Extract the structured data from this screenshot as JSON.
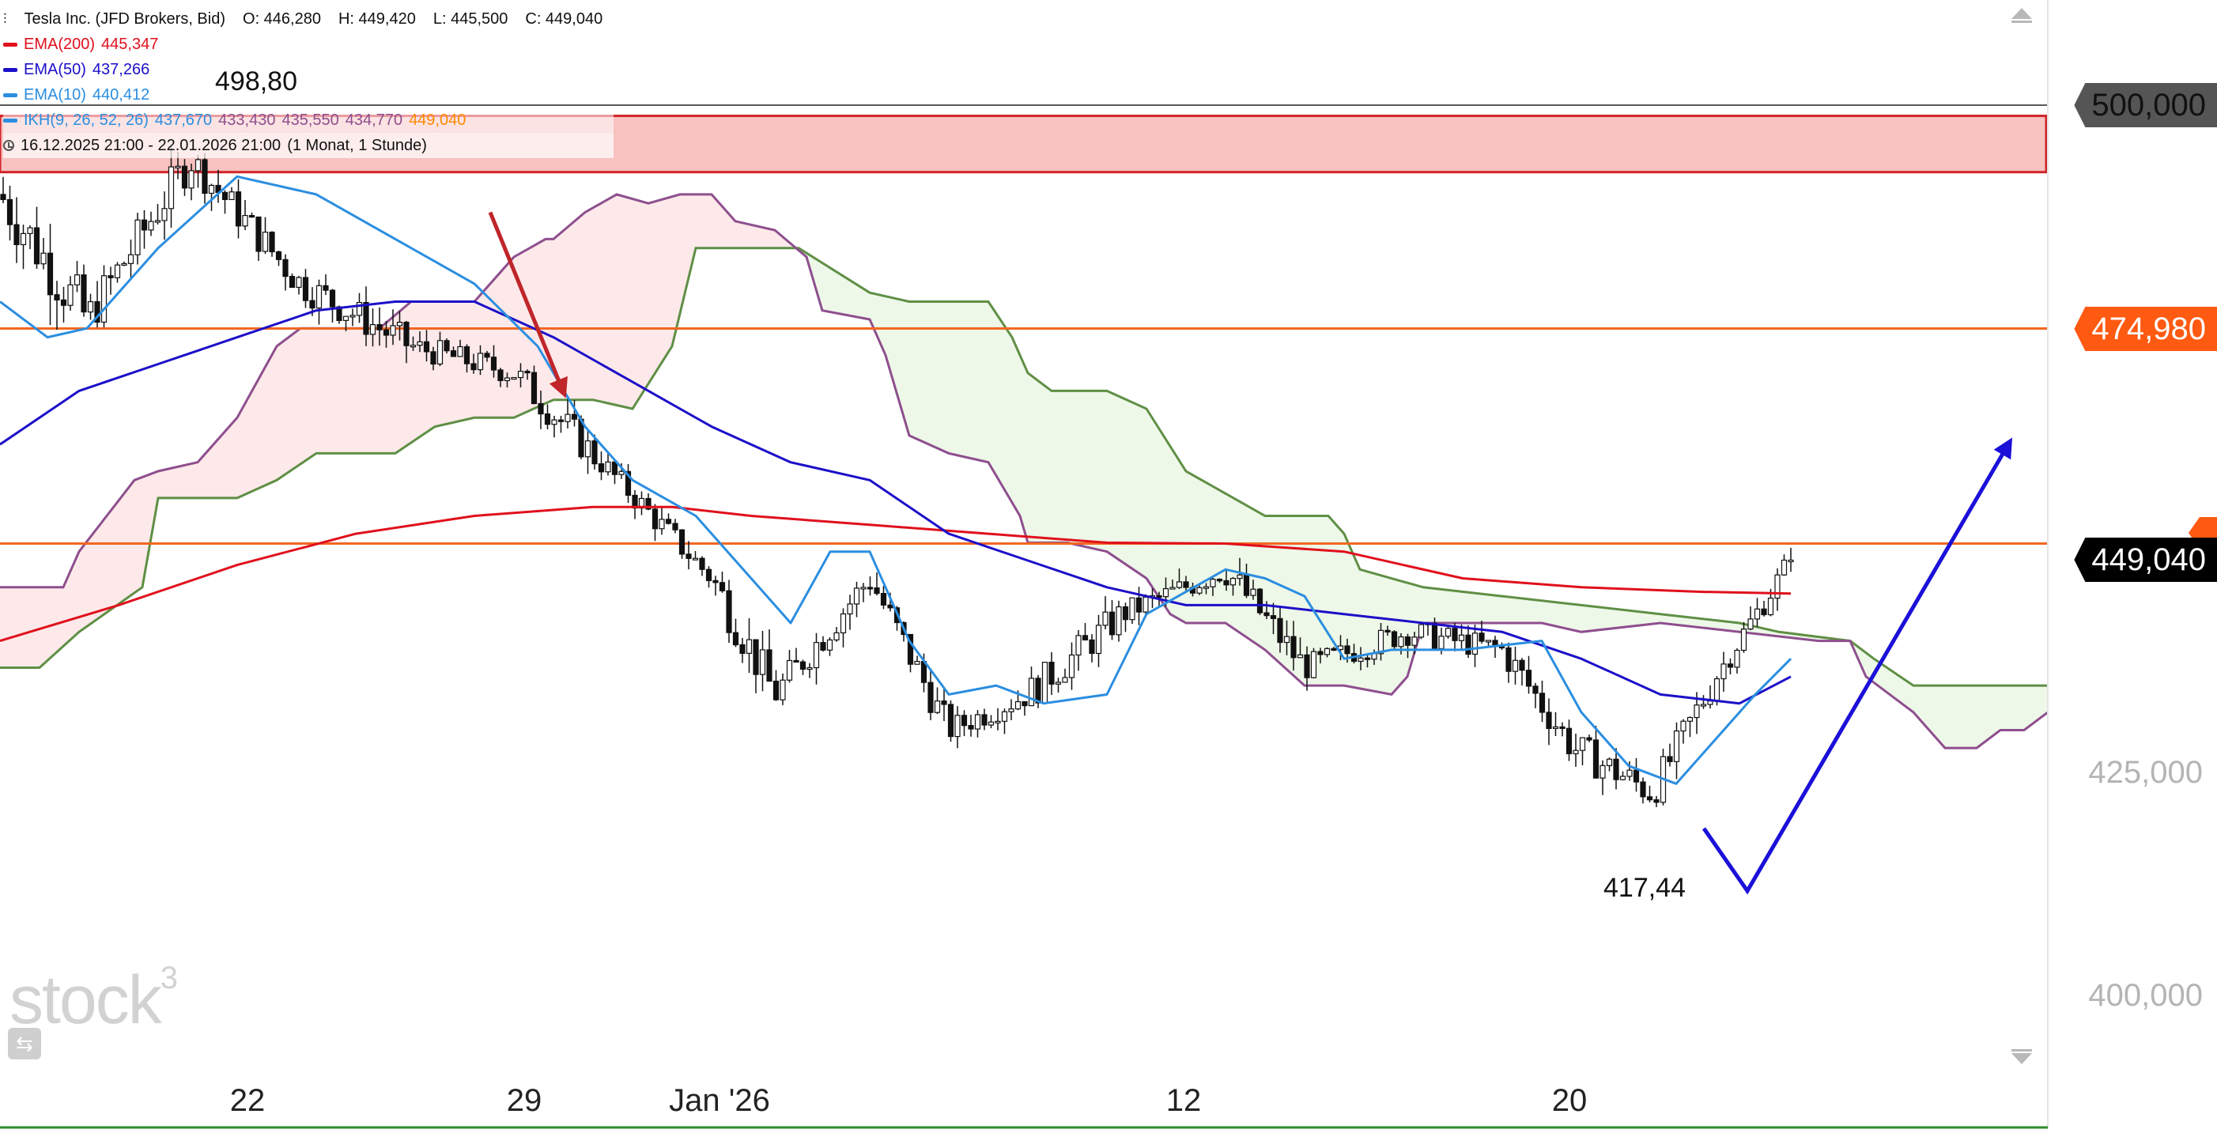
{
  "header": {
    "instrument": "Tesla Inc. (JFD Brokers, Bid)",
    "open": "O: 446,280",
    "high": "H: 449,420",
    "low": "L: 445,500",
    "close": "C: 449,040"
  },
  "legend": {
    "ema200": {
      "label": "EMA(200)",
      "value": "445,347",
      "color": "#e0101c"
    },
    "ema50": {
      "label": "EMA(50)",
      "value": "437,266",
      "color": "#1c0fc8"
    },
    "ema10": {
      "label": "EMA(10)",
      "value": "440,412",
      "color": "#2b8ee0"
    },
    "ikh": {
      "label": "IKH(9, 26, 52, 26)",
      "v1": "437,670",
      "v2": "433,430",
      "v3": "435,550",
      "v4": "434,770",
      "v5": "449,040",
      "colors": [
        "#2b8ee0",
        "#8e4f8e",
        "#8e4f8e",
        "#8e4f8e",
        "#ff8a00"
      ]
    },
    "period": "16.12.2025 21:00 - 22.01.2026 21:00",
    "period_detail": "(1 Monat, 1 Stunde)"
  },
  "annotations": {
    "high_label": "498,80",
    "low_label": "417,44"
  },
  "price_tags": {
    "resistance_high": "500,000",
    "resistance_mid": "474,980",
    "current": "449,040"
  },
  "watermark": "stock",
  "watermark_sup": "3",
  "chart_data": {
    "type": "candlestick",
    "title": "Tesla Inc. (JFD Brokers, Bid)",
    "timeframe": "1 Stunde",
    "x_labels": [
      "22",
      "29",
      "Jan '26",
      "12",
      "20"
    ],
    "y_ticks": [
      400,
      425
    ],
    "y_tick_labels": [
      "400,000",
      "425,000"
    ],
    "ylim": [
      390,
      510
    ],
    "grid": false,
    "horizontal_lines": [
      {
        "value": 500.0,
        "color": "#222222"
      },
      {
        "value": 474.98,
        "color": "#f26722"
      },
      {
        "value": 450.9,
        "color": "#f26722"
      }
    ],
    "resistance_zone": {
      "from": 492.5,
      "to": 498.8,
      "color": "#f7bfbd"
    },
    "candles_summary": {
      "high": 498.8,
      "low": 417.44,
      "last_close": 449.04
    },
    "candle_segments": [
      {
        "x0": 0,
        "x1": 110,
        "start": 490,
        "end": 476,
        "vol": 7
      },
      {
        "x0": 110,
        "x1": 240,
        "start": 476,
        "end": 494,
        "vol": 5
      },
      {
        "x0": 240,
        "x1": 380,
        "start": 494,
        "end": 480,
        "vol": 4
      },
      {
        "x0": 380,
        "x1": 520,
        "start": 480,
        "end": 473,
        "vol": 4
      },
      {
        "x0": 520,
        "x1": 650,
        "start": 473,
        "end": 470,
        "vol": 3
      },
      {
        "x0": 650,
        "x1": 760,
        "start": 470,
        "end": 460,
        "vol": 4
      },
      {
        "x0": 760,
        "x1": 900,
        "start": 460,
        "end": 447,
        "vol": 3
      },
      {
        "x0": 900,
        "x1": 980,
        "start": 447,
        "end": 434,
        "vol": 5
      },
      {
        "x0": 980,
        "x1": 1100,
        "start": 434,
        "end": 447,
        "vol": 4
      },
      {
        "x0": 1100,
        "x1": 1200,
        "start": 447,
        "end": 430,
        "vol": 4
      },
      {
        "x0": 1200,
        "x1": 1300,
        "start": 430,
        "end": 434,
        "vol": 3
      },
      {
        "x0": 1300,
        "x1": 1420,
        "start": 434,
        "end": 443,
        "vol": 4
      },
      {
        "x0": 1420,
        "x1": 1550,
        "start": 443,
        "end": 448,
        "vol": 3
      },
      {
        "x0": 1550,
        "x1": 1650,
        "start": 448,
        "end": 437,
        "vol": 4
      },
      {
        "x0": 1650,
        "x1": 1780,
        "start": 437,
        "end": 441,
        "vol": 3
      },
      {
        "x0": 1780,
        "x1": 1900,
        "start": 441,
        "end": 439,
        "vol": 3
      },
      {
        "x0": 1900,
        "x1": 1990,
        "start": 439,
        "end": 428,
        "vol": 4
      },
      {
        "x0": 1990,
        "x1": 2090,
        "start": 428,
        "end": 423,
        "vol": 4
      },
      {
        "x0": 2090,
        "x1": 2170,
        "start": 423,
        "end": 436,
        "vol": 4
      },
      {
        "x0": 2170,
        "x1": 2265,
        "start": 436,
        "end": 449,
        "vol": 3
      }
    ],
    "series": [
      {
        "name": "EMA(200)",
        "color": "#e0101c",
        "points": [
          [
            0,
            440
          ],
          [
            150,
            444
          ],
          [
            300,
            448.5
          ],
          [
            450,
            452
          ],
          [
            600,
            454
          ],
          [
            750,
            455
          ],
          [
            850,
            455
          ],
          [
            950,
            454
          ],
          [
            1100,
            453
          ],
          [
            1250,
            452
          ],
          [
            1400,
            451
          ],
          [
            1550,
            450.9
          ],
          [
            1700,
            450
          ],
          [
            1850,
            447
          ],
          [
            2000,
            446
          ],
          [
            2150,
            445.5
          ],
          [
            2265,
            445.3
          ]
        ]
      },
      {
        "name": "EMA(50)",
        "color": "#1c0fc8",
        "points": [
          [
            0,
            462
          ],
          [
            100,
            468
          ],
          [
            200,
            471
          ],
          [
            300,
            474
          ],
          [
            400,
            477
          ],
          [
            500,
            478
          ],
          [
            600,
            478
          ],
          [
            700,
            474
          ],
          [
            800,
            469
          ],
          [
            900,
            464
          ],
          [
            1000,
            460
          ],
          [
            1100,
            458
          ],
          [
            1200,
            452
          ],
          [
            1300,
            449
          ],
          [
            1400,
            446
          ],
          [
            1500,
            444
          ],
          [
            1600,
            444
          ],
          [
            1700,
            443
          ],
          [
            1800,
            442
          ],
          [
            1900,
            441
          ],
          [
            2000,
            438
          ],
          [
            2100,
            434
          ],
          [
            2200,
            433
          ],
          [
            2265,
            436
          ]
        ]
      },
      {
        "name": "EMA(10)",
        "color": "#2b8ee0",
        "points": [
          [
            0,
            478
          ],
          [
            60,
            474
          ],
          [
            110,
            475
          ],
          [
            200,
            484
          ],
          [
            300,
            492
          ],
          [
            400,
            490
          ],
          [
            500,
            485
          ],
          [
            600,
            480
          ],
          [
            680,
            473
          ],
          [
            740,
            464
          ],
          [
            800,
            458
          ],
          [
            880,
            454
          ],
          [
            950,
            447
          ],
          [
            1000,
            442
          ],
          [
            1050,
            450
          ],
          [
            1100,
            450
          ],
          [
            1150,
            440
          ],
          [
            1200,
            434
          ],
          [
            1260,
            435
          ],
          [
            1320,
            433
          ],
          [
            1400,
            434
          ],
          [
            1450,
            443
          ],
          [
            1550,
            448
          ],
          [
            1600,
            447
          ],
          [
            1650,
            445
          ],
          [
            1700,
            438
          ],
          [
            1760,
            439
          ],
          [
            1850,
            439
          ],
          [
            1950,
            440
          ],
          [
            2000,
            432
          ],
          [
            2060,
            426
          ],
          [
            2120,
            424
          ],
          [
            2160,
            428
          ],
          [
            2220,
            434
          ],
          [
            2265,
            438
          ]
        ]
      }
    ],
    "ichimoku": {
      "span_a": {
        "color": "#5f8f45",
        "points": [
          [
            0,
            437
          ],
          [
            50,
            437
          ],
          [
            100,
            441
          ],
          [
            180,
            446
          ],
          [
            200,
            456
          ],
          [
            300,
            456
          ],
          [
            350,
            458
          ],
          [
            400,
            461
          ],
          [
            500,
            461
          ],
          [
            550,
            464
          ],
          [
            600,
            465
          ],
          [
            650,
            465
          ],
          [
            700,
            467
          ],
          [
            750,
            467
          ],
          [
            800,
            466
          ],
          [
            850,
            473
          ],
          [
            880,
            484
          ],
          [
            900,
            484
          ],
          [
            1000,
            484
          ],
          [
            1010,
            484
          ],
          [
            1100,
            479
          ],
          [
            1150,
            478
          ],
          [
            1200,
            478
          ],
          [
            1250,
            478
          ],
          [
            1280,
            474
          ],
          [
            1300,
            470
          ],
          [
            1330,
            468
          ],
          [
            1400,
            468
          ],
          [
            1450,
            466
          ],
          [
            1500,
            459
          ],
          [
            1600,
            454
          ],
          [
            1680,
            454
          ],
          [
            1700,
            452
          ],
          [
            1720,
            448
          ],
          [
            1800,
            446
          ],
          [
            1900,
            445
          ],
          [
            2000,
            444
          ],
          [
            2100,
            443
          ],
          [
            2200,
            442
          ],
          [
            2250,
            441
          ],
          [
            2340,
            440
          ],
          [
            2370,
            438
          ],
          [
            2420,
            435
          ],
          [
            2500,
            435
          ],
          [
            2590,
            435
          ]
        ]
      },
      "span_b": {
        "color": "#8e4f8e",
        "points": [
          [
            0,
            446
          ],
          [
            80,
            446
          ],
          [
            100,
            450
          ],
          [
            170,
            458
          ],
          [
            200,
            459
          ],
          [
            250,
            460
          ],
          [
            300,
            465
          ],
          [
            350,
            473
          ],
          [
            380,
            475
          ],
          [
            420,
            475
          ],
          [
            480,
            475
          ],
          [
            520,
            478
          ],
          [
            600,
            478
          ],
          [
            650,
            483
          ],
          [
            690,
            485
          ],
          [
            700,
            485
          ],
          [
            740,
            488
          ],
          [
            780,
            490
          ],
          [
            820,
            489
          ],
          [
            860,
            490
          ],
          [
            900,
            490
          ],
          [
            930,
            487
          ],
          [
            980,
            486
          ],
          [
            1020,
            483
          ],
          [
            1040,
            477
          ],
          [
            1100,
            476
          ],
          [
            1120,
            472
          ],
          [
            1150,
            463
          ],
          [
            1200,
            461
          ],
          [
            1250,
            460
          ],
          [
            1290,
            454
          ],
          [
            1300,
            451
          ],
          [
            1350,
            451
          ],
          [
            1400,
            450
          ],
          [
            1450,
            447
          ],
          [
            1480,
            443
          ],
          [
            1500,
            442
          ],
          [
            1550,
            442
          ],
          [
            1600,
            439
          ],
          [
            1650,
            435
          ],
          [
            1700,
            435
          ],
          [
            1760,
            434
          ],
          [
            1780,
            436
          ],
          [
            1800,
            442
          ],
          [
            1850,
            442
          ],
          [
            1950,
            442
          ],
          [
            2000,
            441
          ],
          [
            2100,
            442
          ],
          [
            2200,
            441
          ],
          [
            2300,
            440
          ],
          [
            2340,
            440
          ],
          [
            2360,
            436
          ],
          [
            2420,
            432
          ],
          [
            2460,
            428
          ],
          [
            2500,
            428
          ],
          [
            2530,
            430
          ],
          [
            2560,
            430
          ],
          [
            2590,
            432
          ]
        ]
      }
    },
    "markers": [
      {
        "type": "arrow",
        "color": "#c0252a",
        "from": [
          620,
          488
        ],
        "to": [
          712,
          468
        ]
      },
      {
        "type": "arrow",
        "color": "#1b10d8",
        "from": [
          2155,
          419
        ],
        "path": [
          [
            2155,
            419
          ],
          [
            2210,
            412
          ],
          [
            2540,
            462
          ]
        ]
      }
    ]
  }
}
